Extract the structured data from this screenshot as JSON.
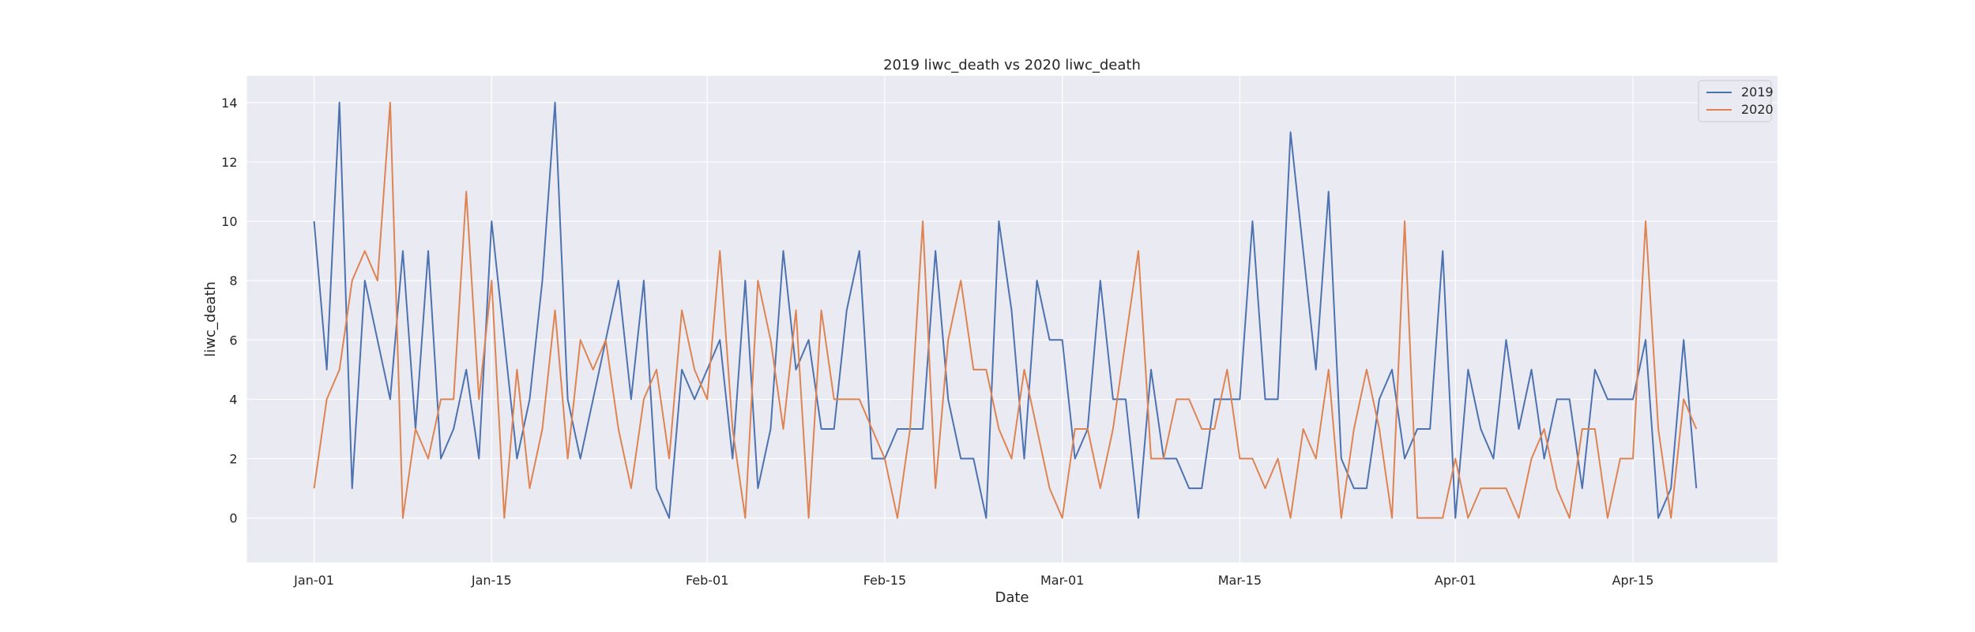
{
  "chart_data": {
    "type": "line",
    "title": "2019 liwc_death vs 2020 liwc_death",
    "xlabel": "Date",
    "ylabel": "liwc_death",
    "ylim": [
      -1.5,
      14.9
    ],
    "yticks": [
      0,
      2,
      4,
      6,
      8,
      10,
      12,
      14
    ],
    "xticks": [
      {
        "day": 0,
        "label": "Jan-01"
      },
      {
        "day": 14,
        "label": "Jan-15"
      },
      {
        "day": 31,
        "label": "Feb-01"
      },
      {
        "day": 45,
        "label": "Feb-15"
      },
      {
        "day": 59,
        "label": "Mar-01"
      },
      {
        "day": 73,
        "label": "Mar-15"
      },
      {
        "day": 90,
        "label": "Apr-01"
      },
      {
        "day": 104,
        "label": "Apr-15"
      }
    ],
    "xlim": [
      -5.3,
      115.4
    ],
    "grid": true,
    "legend_position": "top-right",
    "series": [
      {
        "name": "2019",
        "color": "#4c72b0",
        "values": [
          10,
          5,
          14,
          1,
          8,
          6,
          4,
          9,
          3,
          9,
          2,
          3,
          5,
          2,
          10,
          6,
          2,
          4,
          8,
          14,
          4,
          2,
          4,
          6,
          8,
          4,
          8,
          1,
          0,
          5,
          4,
          5,
          6,
          2,
          8,
          1,
          3,
          9,
          5,
          6,
          3,
          3,
          7,
          9,
          2,
          2,
          3,
          3,
          3,
          9,
          4,
          2,
          2,
          0,
          10,
          7,
          2,
          8,
          6,
          6,
          2,
          3,
          8,
          4,
          4,
          0,
          5,
          2,
          2,
          1,
          1,
          4,
          4,
          4,
          10,
          4,
          4,
          13,
          9,
          5,
          11,
          2,
          1,
          1,
          4,
          5,
          2,
          3,
          3,
          9,
          0,
          5,
          3,
          2,
          6,
          3,
          5,
          2,
          4,
          4,
          1,
          5,
          4,
          4,
          4,
          6,
          0,
          1,
          6,
          1
        ]
      },
      {
        "name": "2020",
        "color": "#dd8452",
        "values": [
          1,
          4,
          5,
          8,
          9,
          8,
          14,
          0,
          3,
          2,
          4,
          4,
          11,
          4,
          8,
          0,
          5,
          1,
          3,
          7,
          2,
          6,
          5,
          6,
          3,
          1,
          4,
          5,
          2,
          7,
          5,
          4,
          9,
          3,
          0,
          8,
          6,
          3,
          7,
          0,
          7,
          4,
          4,
          4,
          3,
          2,
          0,
          3,
          10,
          1,
          6,
          8,
          5,
          5,
          3,
          2,
          5,
          3,
          1,
          0,
          3,
          3,
          1,
          3,
          6,
          9,
          2,
          2,
          4,
          4,
          3,
          3,
          5,
          2,
          2,
          1,
          2,
          0,
          3,
          2,
          5,
          0,
          3,
          5,
          3,
          0,
          10,
          0,
          0,
          0,
          2,
          0,
          1,
          1,
          1,
          0,
          2,
          3,
          1,
          0,
          3,
          3,
          0,
          2,
          2,
          10,
          3,
          0,
          4,
          3
        ]
      }
    ]
  }
}
